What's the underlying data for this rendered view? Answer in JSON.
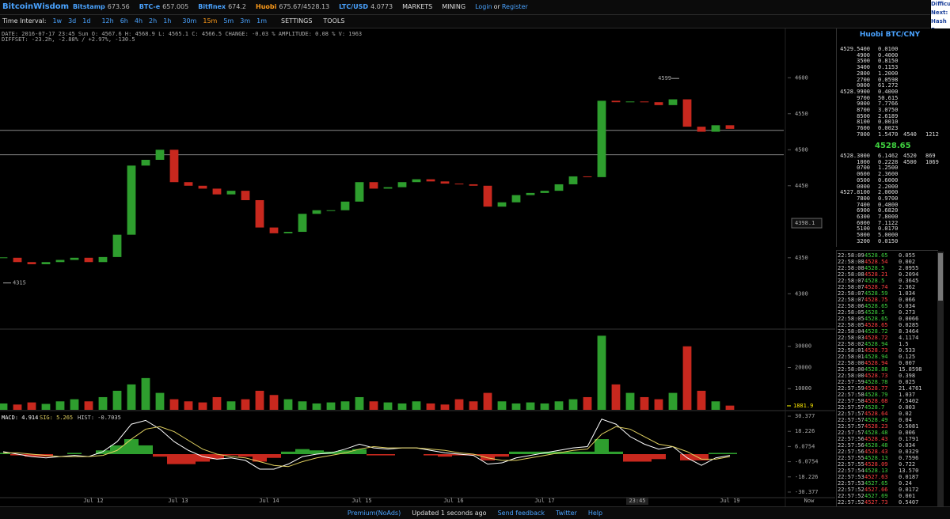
{
  "header": {
    "brand": "BitcoinWisdom",
    "tickers": [
      {
        "name": "Bitstamp",
        "price": "673.56",
        "color": "#4aa3ff"
      },
      {
        "name": "BTC-e",
        "price": "657.005",
        "color": "#4aa3ff"
      },
      {
        "name": "Bitfinex",
        "price": "674.2",
        "color": "#4aa3ff"
      },
      {
        "name": "Huobi",
        "price": "675.67/4528.13",
        "color": "#ff9c1a"
      },
      {
        "name": "LTC/USD",
        "price": "4.0773",
        "color": "#4aa3ff"
      }
    ],
    "menus": [
      "MARKETS",
      "MINING"
    ],
    "login": "Login",
    "or": "or",
    "register": "Register",
    "side": [
      "Difficu",
      "Next:",
      "Hash R"
    ]
  },
  "toolbar": {
    "label": "Time Interval:",
    "intervals": [
      "1w",
      "3d",
      "1d",
      "12h",
      "6h",
      "4h",
      "2h",
      "1h",
      "30m",
      "15m",
      "5m",
      "3m",
      "1m"
    ],
    "active_index": 9,
    "settings": "SETTINGS",
    "tools": "TOOLS"
  },
  "chart": {
    "info": [
      "DATE: 2016-07-17 23:45 Sun   O: 4567.6   H: 4568.9   L: 4565.1   C: 4566.5   CHANGE: -0.03 %   AMPLITUDE: 0.08 %   V: 1963",
      "DIFFSET: -23.2h, -2.88% / +2.97%, -130.5"
    ],
    "price": {
      "ylim": [
        4252,
        4664
      ],
      "yticks": [
        4300,
        4350,
        4450,
        4500,
        4550,
        4600
      ],
      "closes": [
        4350,
        4344,
        4341,
        4344,
        4347,
        4350,
        4344,
        4351,
        4382,
        4478,
        4486,
        4500,
        4455,
        4450,
        4446,
        4438,
        4443,
        4430,
        4392,
        4384,
        4386,
        4411,
        4416,
        4416,
        4428,
        4455,
        4446,
        4448,
        4455,
        4459,
        4456,
        4453,
        4452,
        4450,
        4421,
        4427,
        4437,
        4440,
        4443,
        4452,
        4463,
        4462,
        4568,
        4566,
        4567,
        4566,
        4562,
        4570,
        4532,
        4525,
        4534,
        4529
      ],
      "levels": [
        4527,
        4493
      ],
      "high_label": 4599,
      "high_index": 47,
      "low_label": 4315,
      "low_index": 0,
      "cursor": 4398.1,
      "up_color": "#2e9e2e",
      "down_color": "#c8281e"
    },
    "volume": {
      "ylim": [
        0,
        37000
      ],
      "yticks": [
        10000,
        20000,
        30000
      ],
      "values": [
        3000,
        2500,
        3500,
        2800,
        4000,
        5000,
        4000,
        6000,
        9000,
        12000,
        15000,
        8000,
        5000,
        4000,
        3500,
        6000,
        4000,
        5000,
        9000,
        7000,
        5000,
        4000,
        3000,
        3500,
        4000,
        6000,
        4000,
        3500,
        3000,
        4000,
        3000,
        2500,
        5000,
        4000,
        8000,
        4000,
        3000,
        3500,
        3000,
        4000,
        5000,
        6000,
        35000,
        12000,
        8000,
        6000,
        5000,
        8000,
        30000,
        9000,
        4000,
        2000
      ],
      "current": 1881.9
    },
    "macd": {
      "ylim": [
        -34.2,
        34.2
      ],
      "yticks": [
        30.377,
        18.226,
        6.0754,
        -6.0754,
        -18.226,
        -30.377
      ],
      "legend": [
        "MACD: 4.914",
        "SIG: 5.265",
        "HIST: -0.7035"
      ],
      "macd": [
        2,
        0,
        -2,
        -3,
        -2,
        -1,
        -2,
        2,
        10,
        24,
        27,
        20,
        10,
        3,
        -2,
        -4,
        -3,
        -5,
        -12,
        -12,
        -8,
        -2,
        0,
        1,
        4,
        8,
        5,
        4,
        5,
        5,
        3,
        1,
        0,
        -1,
        -8,
        -7,
        -3,
        -1,
        1,
        3,
        5,
        6,
        28,
        24,
        14,
        8,
        4,
        6,
        -3,
        -9,
        -3,
        -1
      ],
      "signal": [
        1,
        1,
        0,
        -1,
        -2,
        -2,
        -2,
        -1,
        3,
        12,
        20,
        22,
        18,
        11,
        4,
        0,
        -2,
        -3,
        -6,
        -9,
        -10,
        -6,
        -3,
        -1,
        1,
        4,
        6,
        5,
        5,
        5,
        4,
        3,
        1,
        0,
        -3,
        -5,
        -5,
        -3,
        -1,
        1,
        3,
        4,
        16,
        22,
        20,
        14,
        8,
        6,
        2,
        -4,
        -4,
        -2
      ],
      "hist": [
        1,
        -1,
        -2,
        -2,
        0,
        1,
        0,
        3,
        7,
        12,
        7,
        -2,
        -8,
        -8,
        -6,
        -4,
        -1,
        -2,
        -6,
        -3,
        2,
        4,
        3,
        2,
        3,
        4,
        -1,
        -1,
        0,
        0,
        -1,
        -2,
        -1,
        -1,
        -5,
        -2,
        2,
        2,
        2,
        2,
        2,
        2,
        12,
        2,
        -6,
        -6,
        -4,
        0,
        -5,
        -5,
        1,
        1
      ]
    },
    "xlabels": [
      "Jul 12",
      "Jul 13",
      "Jul 14",
      "Jul 15",
      "Jul 16",
      "Jul 17",
      "23:45",
      "Jul 19",
      "Now"
    ]
  },
  "orderbook": {
    "title": "Huobi BTC/CNY",
    "asks": [
      [
        "4529.5400",
        "0.0100"
      ],
      [
        "4900",
        "0.4000"
      ],
      [
        "3500",
        "0.8150"
      ],
      [
        "3400",
        "0.1153"
      ],
      [
        "2800",
        "1.2000"
      ],
      [
        "2700",
        "0.0598"
      ],
      [
        "0000",
        "61.272"
      ],
      [
        "4528.9900",
        "0.4000"
      ],
      [
        "9700",
        "50.615"
      ],
      [
        "9000",
        "7.7766"
      ],
      [
        "8700",
        "3.0750"
      ],
      [
        "8500",
        "2.6189"
      ],
      [
        "8100",
        "0.0010"
      ],
      [
        "7600",
        "0.0023"
      ],
      [
        "7000",
        "1.5470"
      ]
    ],
    "ask_side": [
      "4540",
      "1212"
    ],
    "last": "4528.65",
    "bids": [
      [
        "4528.3000",
        "6.1462"
      ],
      [
        "1000",
        "0.2228"
      ],
      [
        "0700",
        "1.2500"
      ],
      [
        "0600",
        "2.3600"
      ],
      [
        "0500",
        "0.6000"
      ],
      [
        "0000",
        "2.2000"
      ],
      [
        "4527.8100",
        "2.0000"
      ],
      [
        "7800",
        "0.9700"
      ],
      [
        "7400",
        "0.4800"
      ],
      [
        "6900",
        "0.6820"
      ],
      [
        "6300",
        "7.8000"
      ],
      [
        "6000",
        "7.1122"
      ],
      [
        "5100",
        "0.0170"
      ],
      [
        "5000",
        "5.0000"
      ],
      [
        "3200",
        "0.0150"
      ]
    ],
    "bid_side": [
      [
        "4520",
        "869"
      ],
      [
        "4500",
        "1069"
      ]
    ]
  },
  "trades": [
    [
      "22:58:09",
      "4528.65",
      "0.055",
      "#3fd13f"
    ],
    [
      "22:58:08",
      "4528.54",
      "0.002",
      "#ff4040"
    ],
    [
      "22:58:08",
      "4528.5",
      "2.0955",
      "#3fd13f"
    ],
    [
      "22:58:08",
      "4528.21",
      "0.2094",
      "#ff4040"
    ],
    [
      "22:58:07",
      "4528.5",
      "0.3645",
      "#3fd13f"
    ],
    [
      "22:58:07",
      "4528.74",
      "2.362",
      "#ff4040"
    ],
    [
      "22:58:07",
      "4528.59",
      "1.034",
      "#3fd13f"
    ],
    [
      "22:58:07",
      "4528.75",
      "0.066",
      "#ff4040"
    ],
    [
      "22:58:06",
      "4528.65",
      "0.034",
      "#3fd13f"
    ],
    [
      "22:58:05",
      "4528.5",
      "0.273",
      "#3fd13f"
    ],
    [
      "22:58:05",
      "4528.65",
      "0.0066",
      "#3fd13f"
    ],
    [
      "22:58:05",
      "4528.65",
      "0.0285",
      "#ff4040"
    ],
    [
      "22:58:04",
      "4528.72",
      "8.3464",
      "#3fd13f"
    ],
    [
      "22:58:03",
      "4528.72",
      "4.1174",
      "#ff4040"
    ],
    [
      "22:58:02",
      "4528.94",
      "1.5",
      "#3fd13f"
    ],
    [
      "22:58:01",
      "4528.73",
      "0.533",
      "#ff4040"
    ],
    [
      "22:58:01",
      "4528.94",
      "0.125",
      "#3fd13f"
    ],
    [
      "22:58:00",
      "4528.94",
      "0.007",
      "#ff4040"
    ],
    [
      "22:58:00",
      "4528.88",
      "15.8598",
      "#3fd13f"
    ],
    [
      "22:58:00",
      "4528.73",
      "0.398",
      "#ff4040"
    ],
    [
      "22:57:59",
      "4528.78",
      "0.025",
      "#3fd13f"
    ],
    [
      "22:57:59",
      "4528.77",
      "21.4761",
      "#ff4040"
    ],
    [
      "22:57:58",
      "4528.79",
      "1.037",
      "#3fd13f"
    ],
    [
      "22:57:58",
      "4528.68",
      "7.5402",
      "#ff4040"
    ],
    [
      "22:57:57",
      "4528.7",
      "0.003",
      "#3fd13f"
    ],
    [
      "22:57:57",
      "4528.64",
      "0.02",
      "#ff4040"
    ],
    [
      "22:57:57",
      "4528.49",
      "0.04",
      "#3fd13f"
    ],
    [
      "22:57:57",
      "4528.23",
      "0.5081",
      "#ff4040"
    ],
    [
      "22:57:57",
      "4528.48",
      "0.006",
      "#3fd13f"
    ],
    [
      "22:57:56",
      "4528.43",
      "0.1791",
      "#ff4040"
    ],
    [
      "22:57:56",
      "4528.48",
      "0.034",
      "#3fd13f"
    ],
    [
      "22:57:56",
      "4528.43",
      "0.0329",
      "#ff4040"
    ],
    [
      "22:57:55",
      "4528.13",
      "0.7596",
      "#3fd13f"
    ],
    [
      "22:57:55",
      "4528.09",
      "0.722",
      "#ff4040"
    ],
    [
      "22:57:54",
      "4528.13",
      "13.570",
      "#3fd13f"
    ],
    [
      "22:57:53",
      "4527.63",
      "0.0187",
      "#ff4040"
    ],
    [
      "22:57:53",
      "4527.65",
      "0.24",
      "#3fd13f"
    ],
    [
      "22:57:52",
      "4527.66",
      "0.0172",
      "#ff4040"
    ],
    [
      "22:57:52",
      "4527.69",
      "0.001",
      "#3fd13f"
    ],
    [
      "22:57:52",
      "4527.73",
      "0.5407",
      "#ff4040"
    ]
  ],
  "footer": [
    "Premium(NoAds)",
    "Updated 1 seconds ago",
    "Send feedback",
    "Twitter",
    "Help"
  ]
}
